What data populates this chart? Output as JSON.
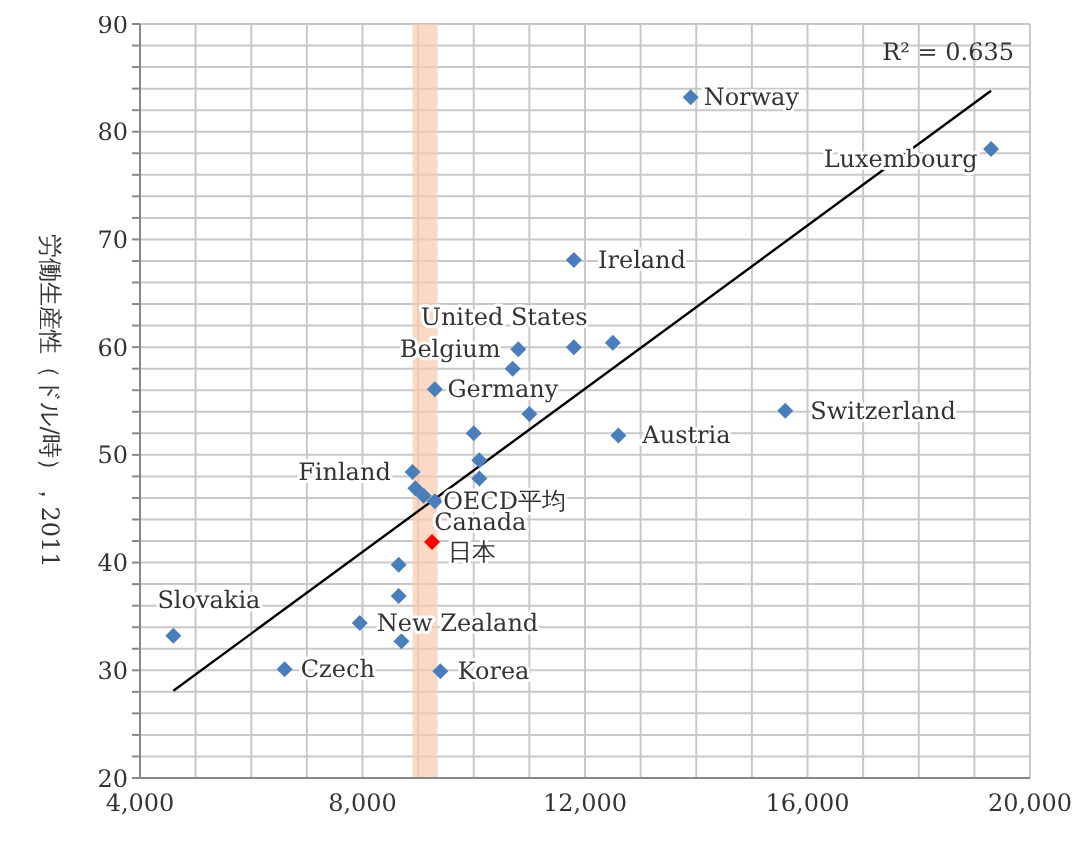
{
  "chart_data": {
    "type": "scatter",
    "ylabel": "労働生産性（ドル/時），2011",
    "xlim": [
      4000,
      20000
    ],
    "xticks": [
      {
        "value": 4000,
        "label": "4,000"
      },
      {
        "value": 5000,
        "label": null
      },
      {
        "value": 6000,
        "label": null
      },
      {
        "value": 7000,
        "label": null
      },
      {
        "value": 8000,
        "label": "8,000"
      },
      {
        "value": 9000,
        "label": null
      },
      {
        "value": 10000,
        "label": null
      },
      {
        "value": 11000,
        "label": null
      },
      {
        "value": 12000,
        "label": "12,000"
      },
      {
        "value": 13000,
        "label": null
      },
      {
        "value": 14000,
        "label": null
      },
      {
        "value": 15000,
        "label": null
      },
      {
        "value": 16000,
        "label": "16,000"
      },
      {
        "value": 17000,
        "label": null
      },
      {
        "value": 18000,
        "label": null
      },
      {
        "value": 19000,
        "label": null
      },
      {
        "value": 20000,
        "label": "20,000"
      }
    ],
    "ylim": [
      20,
      90
    ],
    "yticks": [
      20,
      {
        "value": 22,
        "label": null
      },
      {
        "value": 24,
        "label": null
      },
      {
        "value": 26,
        "label": null
      },
      {
        "value": 28,
        "label": null
      },
      30,
      {
        "value": 32,
        "label": null
      },
      {
        "value": 34,
        "label": null
      },
      {
        "value": 36,
        "label": null
      },
      {
        "value": 38,
        "label": null
      },
      40,
      {
        "value": 42,
        "label": null
      },
      {
        "value": 44,
        "label": null
      },
      {
        "value": 46,
        "label": null
      },
      {
        "value": 48,
        "label": null
      },
      50,
      {
        "value": 52,
        "label": null
      },
      {
        "value": 54,
        "label": null
      },
      {
        "value": 56,
        "label": null
      },
      {
        "value": 58,
        "label": null
      },
      60,
      {
        "value": 62,
        "label": null
      },
      {
        "value": 64,
        "label": null
      },
      {
        "value": 66,
        "label": null
      },
      {
        "value": 68,
        "label": null
      },
      70,
      {
        "value": 72,
        "label": null
      },
      {
        "value": 74,
        "label": null
      },
      {
        "value": 76,
        "label": null
      },
      {
        "value": 78,
        "label": null
      },
      80,
      {
        "value": 82,
        "label": null
      },
      {
        "value": 84,
        "label": null
      },
      {
        "value": 86,
        "label": null
      },
      {
        "value": 88,
        "label": null
      },
      90
    ],
    "grid": true,
    "marker": "diamond",
    "series": [
      {
        "color": "#4a7ebb",
        "x": [
          13900,
          19300,
          11800,
          12500,
          11800,
          10800,
          10700,
          11000,
          15600,
          12600,
          9300,
          10000,
          10100,
          10100,
          8900,
          8950,
          9100,
          9300,
          8650,
          8650,
          7950,
          8700,
          4600,
          6600,
          9400
        ],
        "values": [
          83.2,
          78.4,
          68.1,
          60.4,
          60.0,
          59.8,
          58.0,
          53.8,
          54.1,
          51.8,
          56.1,
          52.0,
          49.5,
          47.8,
          48.4,
          46.9,
          46.2,
          45.7,
          39.8,
          36.9,
          34.4,
          32.7,
          33.2,
          30.1,
          29.9
        ]
      },
      {
        "color": "#ff0000",
        "x": [
          9250
        ],
        "values": [
          41.9
        ]
      },
      {
        "type": "line",
        "color": "#000000",
        "marker": "none",
        "x": [
          4600,
          19300
        ],
        "values": [
          28.1,
          83.8
        ]
      }
    ],
    "bands": [
      {
        "axis": "x",
        "from": 8900,
        "to": 9350,
        "color": "#f8cbad"
      }
    ],
    "annotations": [
      "R² = 0.635",
      {
        "text": "Norway",
        "x": 13900,
        "y": 83.2
      },
      {
        "text": "Luxembourg",
        "x": 19300,
        "y": 78.4
      },
      {
        "text": "Ireland",
        "x": 11800,
        "y": 68.1
      },
      {
        "text": "Belgium",
        "x": 10800,
        "y": 59.8
      },
      {
        "text": "United States",
        "x": 12500,
        "y": 60.4
      },
      {
        "text": "Germany",
        "x": 9300,
        "y": 56.1
      },
      {
        "text": "Switzerland",
        "x": 15600,
        "y": 54.1
      },
      {
        "text": "Austria",
        "x": 12600,
        "y": 51.8
      },
      {
        "text": "Finland",
        "x": 8900,
        "y": 48.4
      },
      {
        "text": "Canada",
        "x": 9100,
        "y": 46.2
      },
      {
        "text": "OECD平均",
        "x": 9300,
        "y": 45.7
      },
      {
        "text": "日本",
        "x": 9250,
        "y": 41.9
      },
      {
        "text": "New Zealand",
        "x": 7950,
        "y": 34.4
      },
      {
        "text": "Slovakia",
        "x": 4600,
        "y": 33.2
      },
      {
        "text": "Czech",
        "x": 6600,
        "y": 30.1
      },
      {
        "text": "Korea",
        "x": 9400,
        "y": 29.9
      }
    ]
  }
}
